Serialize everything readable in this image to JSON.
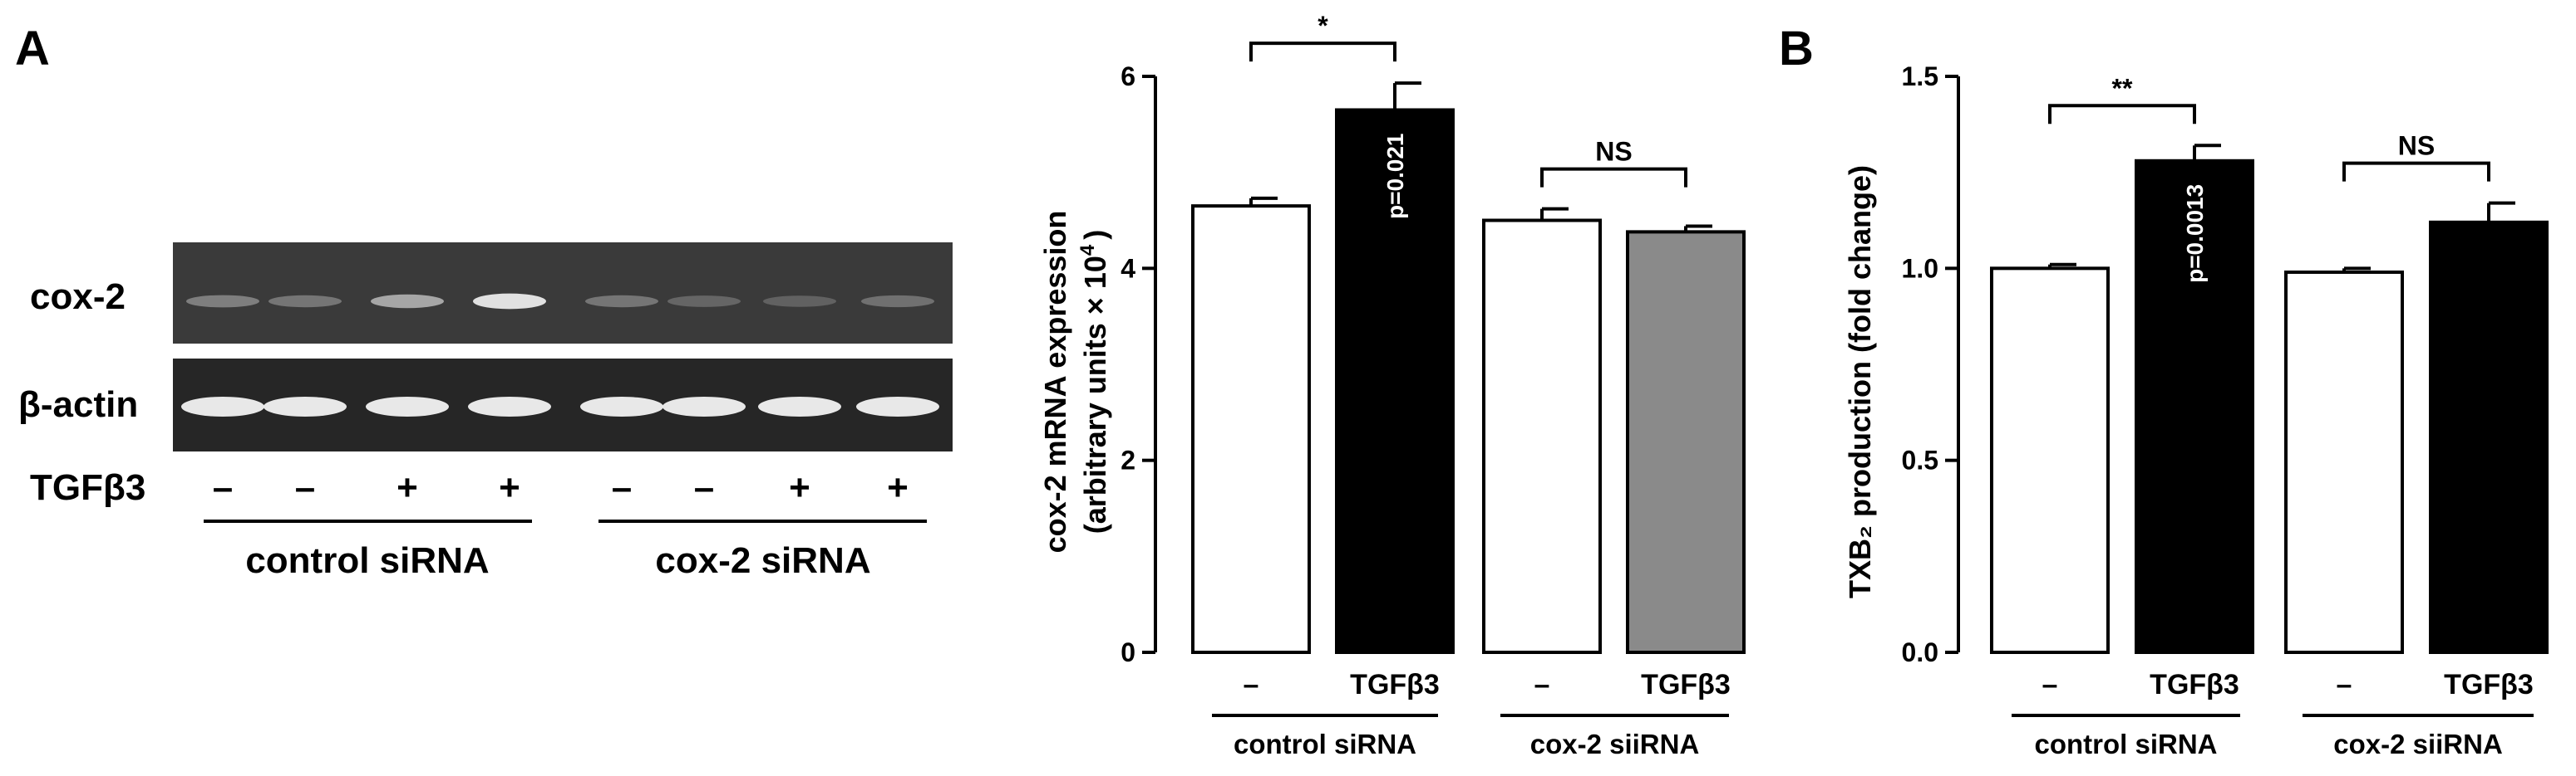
{
  "panels": {
    "a": "A",
    "b": "B"
  },
  "gel": {
    "rows": [
      "cox-2",
      "β-actin"
    ],
    "treatment_label": "TGFβ3",
    "lanes": [
      "–",
      "–",
      "+",
      "+",
      "–",
      "–",
      "+",
      "+"
    ],
    "groups": [
      "control siRNA",
      "cox-2 siRNA"
    ]
  },
  "chart_data": [
    {
      "type": "bar",
      "ylabel_line1": "cox-2 mRNA expression",
      "ylabel_line2": "(arbitrary units × 10",
      "ylabel_sup": "4",
      "ylabel_close": ")",
      "ylim": [
        0,
        6
      ],
      "yticks": [
        "0",
        "2",
        "4",
        "6"
      ],
      "categories": [
        "–",
        "TGFβ3",
        "–",
        "TGFβ3"
      ],
      "groups": [
        "control siRNA",
        "cox-2 siiRNA"
      ],
      "values": [
        4.65,
        5.65,
        4.5,
        4.38
      ],
      "errors": [
        0.08,
        0.28,
        0.12,
        0.06
      ],
      "bar_colors": [
        "#ffffff",
        "#000000",
        "#ffffff",
        "#8a8a8a"
      ],
      "p_values": [
        "",
        "p=0.021",
        "",
        ""
      ],
      "significance": [
        {
          "from": 0,
          "to": 1,
          "label": "*"
        },
        {
          "from": 2,
          "to": 3,
          "label": "NS"
        }
      ]
    },
    {
      "type": "bar",
      "ylabel": "TXB₂ production (fold change)",
      "ylim": [
        0,
        1.5
      ],
      "yticks": [
        "0.0",
        "0.5",
        "1.0",
        "1.5"
      ],
      "categories": [
        "–",
        "TGFβ3",
        "–",
        "TGFβ3"
      ],
      "groups": [
        "control siRNA",
        "cox-2 siiRNA"
      ],
      "values": [
        1.0,
        1.28,
        0.99,
        1.12
      ],
      "errors": [
        0.01,
        0.04,
        0.01,
        0.05
      ],
      "bar_colors": [
        "#ffffff",
        "#000000",
        "#ffffff",
        "#000000"
      ],
      "p_values": [
        "",
        "p=0.0013",
        "",
        ""
      ],
      "significance": [
        {
          "from": 0,
          "to": 1,
          "label": "**"
        },
        {
          "from": 2,
          "to": 3,
          "label": "NS"
        }
      ]
    }
  ]
}
